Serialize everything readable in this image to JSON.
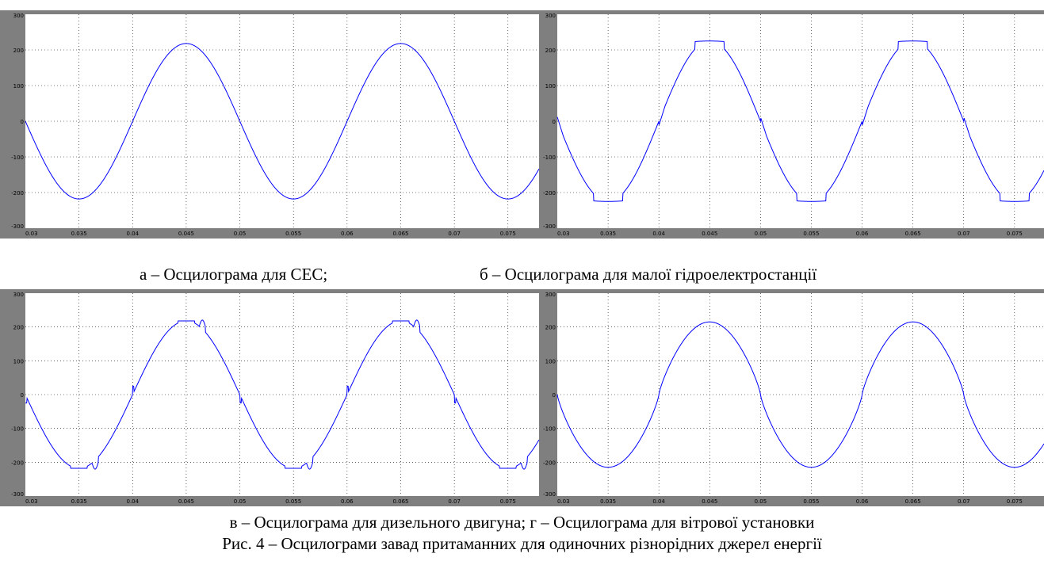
{
  "captions": {
    "a": "а – Осцилограма для СЕС;",
    "b": "б – Осцилограма для малої гідроелектростанції",
    "cd": "в – Осцилограма для дизельного двигуна; г – Осцилограма для вітрової установки",
    "figure": "Рис. 4 – Осцилограми завад притаманних для одиночних різнорідних джерел енергії"
  },
  "colors": {
    "signal": "#0000ff",
    "frame": "#7f7f7f",
    "plot_bg": "#ffffff",
    "grid": "#000000"
  },
  "chart_data": [
    {
      "type": "line",
      "id": "a",
      "xlim": [
        0.03,
        0.0779
      ],
      "ylim": [
        -300,
        300
      ],
      "xticks": [
        "0.03",
        "0.035",
        "0.04",
        "0.045",
        "0.05",
        "0.055",
        "0.06",
        "0.065",
        "0.07",
        "0.075"
      ],
      "yticks": [
        "300",
        "200",
        "100",
        "0",
        "-100",
        "-200",
        "-300"
      ],
      "grid": true,
      "amplitude": 218,
      "period": 0.02,
      "distortion": "none",
      "series": [
        {
          "values_note": "sine",
          "x": [
            0.03,
            0.035,
            0.04,
            0.045,
            0.05,
            0.055,
            0.06,
            0.065,
            0.07,
            0.075,
            0.0779
          ],
          "y": [
            0,
            -218,
            0,
            218,
            0,
            -218,
            0,
            218,
            0,
            -218,
            -120
          ]
        }
      ]
    },
    {
      "type": "line",
      "id": "b",
      "xlim": [
        0.03,
        0.0779
      ],
      "ylim": [
        -300,
        300
      ],
      "xticks": [
        "0.03",
        "0.035",
        "0.04",
        "0.045",
        "0.05",
        "0.055",
        "0.06",
        "0.065",
        "0.07",
        "0.075"
      ],
      "yticks": [
        "300",
        "200",
        "100",
        "0",
        "-100",
        "-200",
        "-300"
      ],
      "grid": true,
      "amplitude": 225,
      "period": 0.02,
      "distortion": "hydro",
      "series": [
        {
          "x": [
            0.03,
            0.0335,
            0.035,
            0.0365,
            0.04,
            0.0435,
            0.045,
            0.0465,
            0.05,
            0.0535,
            0.055,
            0.0565,
            0.06,
            0.0635,
            0.065,
            0.0665,
            0.07,
            0.0735,
            0.075,
            0.0765,
            0.0779
          ],
          "y": [
            5,
            -215,
            -225,
            -195,
            15,
            205,
            225,
            200,
            15,
            -215,
            -225,
            -195,
            15,
            205,
            225,
            200,
            15,
            -215,
            -225,
            -195,
            -140
          ]
        }
      ]
    },
    {
      "type": "line",
      "id": "c",
      "xlim": [
        0.03,
        0.0779
      ],
      "ylim": [
        -300,
        300
      ],
      "xticks": [
        "0.03",
        "0.035",
        "0.04",
        "0.045",
        "0.05",
        "0.055",
        "0.06",
        "0.065",
        "0.07",
        "0.075"
      ],
      "yticks": [
        "300",
        "200",
        "100",
        "0",
        "-100",
        "-200",
        "-300"
      ],
      "grid": true,
      "amplitude": 218,
      "period": 0.02,
      "distortion": "diesel",
      "series": [
        {
          "x": [
            0.03,
            0.0333,
            0.035,
            0.0357,
            0.04,
            0.0443,
            0.045,
            0.0467,
            0.05,
            0.0533,
            0.055,
            0.0557,
            0.06,
            0.0643,
            0.065,
            0.0667,
            0.07,
            0.0733,
            0.075,
            0.0757,
            0.0779
          ],
          "y": [
            0,
            -200,
            -218,
            -200,
            25,
            215,
            218,
            200,
            0,
            -200,
            -218,
            -200,
            25,
            215,
            218,
            200,
            0,
            -200,
            -218,
            -200,
            -95
          ]
        }
      ]
    },
    {
      "type": "line",
      "id": "d",
      "xlim": [
        0.03,
        0.0779
      ],
      "ylim": [
        -300,
        300
      ],
      "xticks": [
        "0.03",
        "0.035",
        "0.04",
        "0.045",
        "0.05",
        "0.055",
        "0.06",
        "0.065",
        "0.07",
        "0.075"
      ],
      "yticks": [
        "300",
        "200",
        "100",
        "0",
        "-100",
        "-200",
        "-300"
      ],
      "grid": true,
      "amplitude": 215,
      "period": 0.02,
      "distortion": "wind",
      "series": [
        {
          "x": [
            0.03,
            0.0325,
            0.035,
            0.0375,
            0.04,
            0.0425,
            0.045,
            0.0475,
            0.05,
            0.0525,
            0.055,
            0.0575,
            0.06,
            0.0625,
            0.065,
            0.0675,
            0.07,
            0.0725,
            0.075,
            0.0779
          ],
          "y": [
            0,
            -175,
            -215,
            -175,
            0,
            175,
            215,
            175,
            0,
            -175,
            -215,
            -175,
            0,
            175,
            215,
            175,
            0,
            -175,
            -215,
            -150
          ]
        }
      ]
    }
  ]
}
